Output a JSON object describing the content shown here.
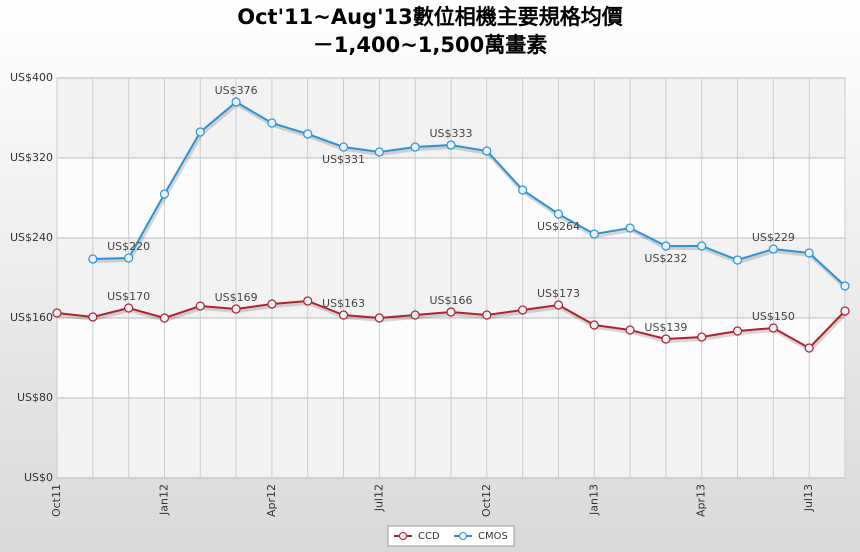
{
  "chart_data": {
    "type": "line",
    "title": "Oct'11~Aug'13數位相機主要規格均價",
    "subtitle": "－1,400~1,500萬畫素",
    "categories": [
      "Oct11",
      null,
      null,
      "Jan12",
      null,
      null,
      "Apr12",
      null,
      null,
      "Jul12",
      null,
      null,
      "Oct12",
      null,
      null,
      "Jan13",
      null,
      null,
      "Apr13",
      null,
      null,
      "Jul13",
      null
    ],
    "series": [
      {
        "name": "CCD",
        "color": "#b0232a",
        "values": [
          165,
          161,
          170,
          160,
          172,
          169,
          174,
          177,
          163,
          160,
          163,
          166,
          163,
          168,
          173,
          153,
          148,
          139,
          141,
          147,
          150,
          130,
          167
        ],
        "value_labels": [
          null,
          null,
          "US$170",
          null,
          null,
          "US$169",
          null,
          null,
          "US$163",
          null,
          null,
          "US$166",
          null,
          null,
          "US$173",
          null,
          null,
          "US$139",
          null,
          null,
          "US$150",
          null,
          null
        ]
      },
      {
        "name": "CMOS",
        "color": "#2e93d4",
        "values": [
          null,
          219,
          220,
          284,
          346,
          376,
          355,
          344,
          331,
          326,
          331,
          333,
          327,
          288,
          264,
          244,
          250,
          232,
          232,
          218,
          229,
          225,
          192
        ],
        "value_labels": [
          null,
          null,
          "US$220",
          null,
          null,
          "US$376",
          null,
          null,
          "US$331",
          null,
          null,
          "US$333",
          null,
          null,
          "US$264",
          null,
          null,
          "US$232",
          null,
          null,
          "US$229",
          null,
          null
        ]
      }
    ],
    "ylim": [
      0,
      400
    ],
    "yticks": [
      {
        "value": 0,
        "label": "US$0"
      },
      {
        "value": 80,
        "label": "US$80"
      },
      {
        "value": 160,
        "label": "US$160"
      },
      {
        "value": 240,
        "label": "US$240"
      },
      {
        "value": 320,
        "label": "US$320"
      },
      {
        "value": 400,
        "label": "US$400"
      }
    ],
    "grid": true,
    "legend": "bottom"
  }
}
